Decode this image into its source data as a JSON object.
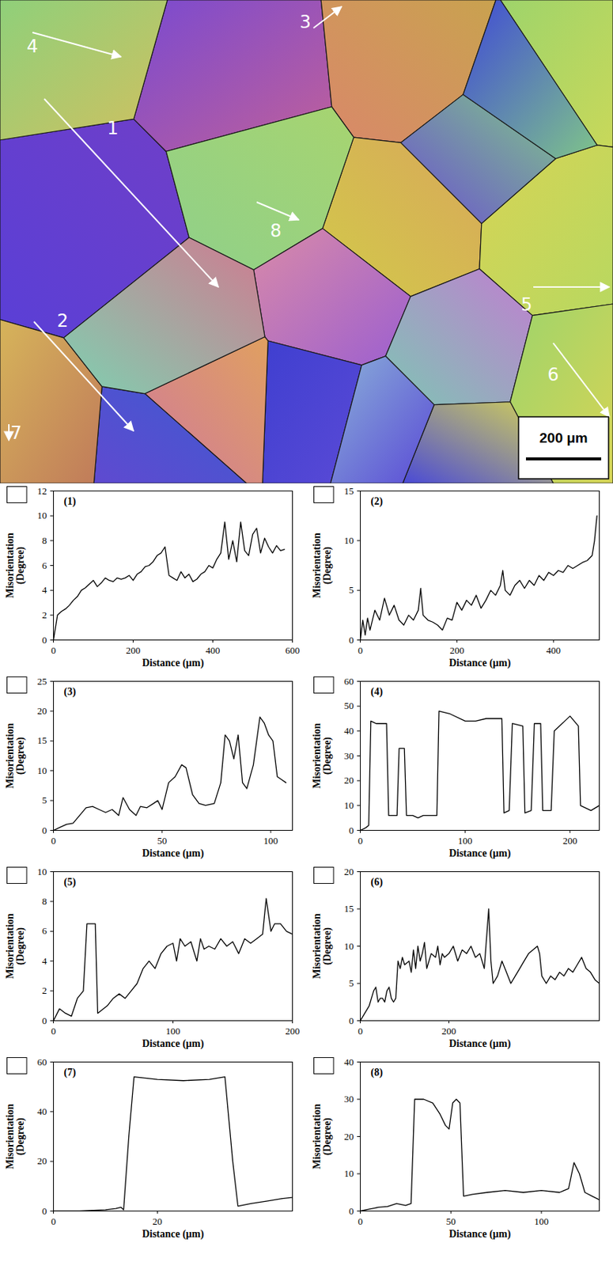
{
  "micrograph": {
    "arrow_labels": [
      "1",
      "2",
      "3",
      "4",
      "5",
      "6",
      "7",
      "8"
    ],
    "scale_bar": "200 μm"
  },
  "chart_data": [
    {
      "type": "line",
      "title": "(1)",
      "xlabel": "Distance (μm)",
      "ylabel": "Misorientation (Degree)",
      "color": "#000000",
      "xlim": [
        0,
        600
      ],
      "xticks": [
        0,
        200,
        400,
        600
      ],
      "ylim": [
        0,
        12
      ],
      "yticks": [
        0,
        2,
        4,
        6,
        8,
        10,
        12
      ],
      "x": [
        0,
        5,
        10,
        20,
        30,
        40,
        50,
        60,
        70,
        80,
        90,
        100,
        110,
        120,
        130,
        140,
        150,
        160,
        170,
        180,
        190,
        200,
        210,
        220,
        230,
        240,
        250,
        260,
        270,
        280,
        290,
        300,
        310,
        320,
        330,
        340,
        350,
        360,
        370,
        380,
        390,
        400,
        410,
        420,
        430,
        440,
        450,
        460,
        470,
        480,
        490,
        500,
        510,
        520,
        530,
        540,
        550,
        560,
        570,
        580
      ],
      "values": [
        0,
        1,
        2,
        2.3,
        2.5,
        2.8,
        3.2,
        3.5,
        4,
        4.2,
        4.5,
        4.8,
        4.3,
        4.6,
        5,
        4.8,
        4.7,
        5,
        4.9,
        5,
        5.2,
        4.8,
        5.3,
        5.5,
        5.9,
        6,
        6.3,
        6.8,
        7,
        7.5,
        5.2,
        5,
        4.8,
        5.5,
        5,
        5.3,
        4.7,
        4.9,
        5.3,
        5.5,
        6,
        5.8,
        6.5,
        7,
        9.5,
        6.5,
        8,
        6.3,
        9.5,
        7.2,
        6.8,
        8.5,
        9,
        7,
        8.2,
        7.5,
        7,
        7.6,
        7.2,
        7.3
      ]
    },
    {
      "type": "line",
      "title": "(2)",
      "xlabel": "Distance (μm)",
      "ylabel": "Misorientation (Degree)",
      "color": "#000000",
      "xlim": [
        0,
        495
      ],
      "xticks": [
        0,
        200,
        400
      ],
      "ylim": [
        0,
        15
      ],
      "yticks": [
        0,
        5,
        10,
        15
      ],
      "x": [
        0,
        5,
        10,
        15,
        20,
        30,
        40,
        50,
        60,
        70,
        80,
        90,
        100,
        110,
        120,
        125,
        130,
        140,
        150,
        160,
        170,
        180,
        190,
        200,
        210,
        220,
        230,
        240,
        250,
        260,
        270,
        280,
        290,
        295,
        300,
        310,
        320,
        330,
        340,
        350,
        360,
        370,
        380,
        390,
        400,
        410,
        420,
        430,
        440,
        450,
        460,
        470,
        480,
        485,
        490
      ],
      "values": [
        0,
        2,
        0.5,
        2.2,
        1,
        3,
        2,
        4.2,
        2.5,
        3.5,
        2,
        1.5,
        2.5,
        2,
        3,
        5.2,
        2.5,
        2,
        1.8,
        1.5,
        1,
        2.2,
        2,
        3.8,
        3,
        4,
        3.5,
        4.5,
        3.2,
        4,
        5,
        4.5,
        5.5,
        7,
        5,
        4.5,
        5.5,
        6,
        5.2,
        6,
        5.5,
        6.5,
        6,
        6.8,
        6.5,
        7,
        6.8,
        7.5,
        7.2,
        7.5,
        7.8,
        8,
        8.5,
        10,
        12.5
      ]
    },
    {
      "type": "line",
      "title": "(3)",
      "xlabel": "Distance (μm)",
      "ylabel": "Misorientation (Degree)",
      "color": "#000000",
      "xlim": [
        0,
        110
      ],
      "xticks": [
        0,
        50,
        100
      ],
      "ylim": [
        0,
        25
      ],
      "yticks": [
        0,
        5,
        10,
        15,
        20,
        25
      ],
      "x": [
        0,
        3,
        6,
        9,
        12,
        15,
        18,
        21,
        24,
        27,
        30,
        32,
        35,
        38,
        40,
        43,
        46,
        48,
        50,
        53,
        56,
        59,
        61,
        64,
        67,
        70,
        74,
        77,
        79,
        81,
        83,
        85,
        87,
        89,
        92,
        95,
        97,
        99,
        101,
        103,
        105,
        107
      ],
      "values": [
        0,
        0.5,
        1,
        1.2,
        2.5,
        3.8,
        4,
        3.5,
        3,
        3.5,
        2.5,
        5.5,
        3.5,
        2.5,
        4,
        3.8,
        4.5,
        5,
        3.5,
        8,
        9,
        11,
        10.5,
        6,
        4.5,
        4.2,
        4.5,
        8,
        16,
        15,
        12,
        16,
        8,
        7,
        11,
        19,
        18,
        16,
        15,
        9,
        8.5,
        8
      ]
    },
    {
      "type": "line",
      "title": "(4)",
      "xlabel": "Distance (μm)",
      "ylabel": "Misorientation (Degree)",
      "color": "#000000",
      "xlim": [
        0,
        228
      ],
      "xticks": [
        0,
        100,
        200
      ],
      "ylim": [
        0,
        60
      ],
      "yticks": [
        0,
        10,
        20,
        30,
        40,
        50,
        60
      ],
      "x": [
        0,
        5,
        8,
        10,
        15,
        25,
        27,
        35,
        37,
        42,
        44,
        50,
        55,
        60,
        70,
        73,
        75,
        85,
        100,
        110,
        120,
        135,
        137,
        142,
        145,
        155,
        157,
        163,
        166,
        172,
        174,
        182,
        185,
        195,
        200,
        208,
        210,
        220,
        228
      ],
      "values": [
        0,
        1,
        2,
        44,
        43,
        43,
        6,
        6,
        33,
        33,
        6,
        6,
        5,
        6,
        6,
        6,
        48,
        47,
        44,
        44,
        45,
        45,
        7,
        8,
        43,
        42,
        7,
        8,
        43,
        43,
        8,
        8,
        40,
        44,
        46,
        42,
        10,
        8,
        10
      ]
    },
    {
      "type": "line",
      "title": "(5)",
      "xlabel": "Distance (μm)",
      "ylabel": "Misorientation (Degree)",
      "color": "#000000",
      "xlim": [
        0,
        200
      ],
      "xticks": [
        0,
        100,
        200
      ],
      "ylim": [
        0,
        10
      ],
      "yticks": [
        0,
        2,
        4,
        6,
        8,
        10
      ],
      "x": [
        0,
        5,
        10,
        15,
        20,
        25,
        28,
        35,
        37,
        45,
        50,
        55,
        60,
        65,
        70,
        75,
        80,
        85,
        90,
        95,
        100,
        103,
        106,
        110,
        115,
        120,
        123,
        126,
        130,
        135,
        140,
        145,
        150,
        155,
        160,
        165,
        170,
        175,
        178,
        182,
        185,
        190,
        195,
        200
      ],
      "values": [
        0,
        0.8,
        0.5,
        0.3,
        1.5,
        2,
        6.5,
        6.5,
        0.5,
        1,
        1.5,
        1.8,
        1.5,
        2,
        2.5,
        3.5,
        4,
        3.5,
        4.5,
        5,
        5.2,
        4,
        5.5,
        5,
        5.3,
        4,
        5.5,
        4.8,
        5,
        4.8,
        5.5,
        5,
        5.3,
        4.5,
        5.5,
        5.2,
        5.5,
        5.8,
        8.2,
        6,
        6.5,
        6.5,
        6,
        5.8
      ]
    },
    {
      "type": "line",
      "title": "(6)",
      "xlabel": "Distance (μm)",
      "ylabel": "Misorientation (Degree)",
      "color": "#000000",
      "xlim": [
        0,
        540
      ],
      "xticks": [
        0,
        200
      ],
      "ylim": [
        0,
        20
      ],
      "yticks": [
        0,
        5,
        10,
        15,
        20
      ],
      "x": [
        0,
        10,
        20,
        30,
        35,
        40,
        45,
        50,
        55,
        60,
        65,
        70,
        75,
        80,
        85,
        90,
        95,
        100,
        110,
        115,
        120,
        125,
        130,
        135,
        140,
        145,
        150,
        160,
        170,
        175,
        180,
        185,
        190,
        200,
        210,
        220,
        230,
        240,
        250,
        260,
        270,
        280,
        285,
        290,
        295,
        300,
        310,
        320,
        330,
        340,
        350,
        360,
        370,
        380,
        390,
        400,
        405,
        410,
        420,
        430,
        440,
        450,
        460,
        470,
        480,
        490,
        500,
        510,
        520,
        530,
        540
      ],
      "values": [
        0,
        1,
        2,
        4,
        4.5,
        2.5,
        3,
        3,
        2.5,
        4,
        4.5,
        3,
        2.5,
        3,
        8,
        7,
        8.5,
        7.5,
        8,
        6.5,
        9.5,
        7,
        10,
        8,
        9,
        10.5,
        7,
        9,
        8.5,
        10,
        7.5,
        9,
        8.5,
        9,
        10,
        8,
        9.5,
        9,
        10,
        8.5,
        9,
        7,
        11,
        15,
        8,
        5,
        6,
        8,
        6.5,
        5,
        6,
        7,
        8,
        9,
        9.5,
        10,
        9,
        6,
        5,
        6,
        5.5,
        6.5,
        6,
        7,
        6.5,
        7.5,
        8.5,
        7,
        6.5,
        5.5,
        5
      ]
    },
    {
      "type": "line",
      "title": "(7)",
      "xlabel": "Distance (μm)",
      "ylabel": "Misorientation (Degree)",
      "color": "#000000",
      "xlim": [
        0,
        46
      ],
      "xticks": [
        0,
        20
      ],
      "ylim": [
        0,
        60
      ],
      "yticks": [
        0,
        20,
        40,
        60
      ],
      "x": [
        0,
        5,
        10,
        12,
        13,
        13.5,
        14.5,
        15.5,
        20,
        25,
        30,
        33,
        34.5,
        35.5,
        38,
        41,
        44,
        46
      ],
      "values": [
        0,
        0,
        0.5,
        1,
        1.5,
        0.5,
        30,
        54,
        53,
        52.5,
        53,
        54,
        20,
        2,
        3,
        4,
        5,
        5.5
      ]
    },
    {
      "type": "line",
      "title": "(8)",
      "xlabel": "Distance (μm)",
      "ylabel": "Misorientation (Degree)",
      "color": "#000000",
      "xlim": [
        0,
        132
      ],
      "xticks": [
        0,
        50,
        100
      ],
      "ylim": [
        0,
        40
      ],
      "yticks": [
        0,
        10,
        20,
        30,
        40
      ],
      "x": [
        0,
        5,
        10,
        15,
        20,
        25,
        28,
        30,
        35,
        40,
        44,
        47,
        49,
        51,
        53,
        55,
        57,
        62,
        70,
        80,
        90,
        100,
        110,
        115,
        118,
        121,
        124,
        128,
        132
      ],
      "values": [
        0,
        0.5,
        1,
        1.2,
        2,
        1.5,
        2,
        30,
        30,
        29,
        26,
        23,
        22,
        29,
        30,
        29,
        4,
        4.5,
        5,
        5.5,
        5,
        5.5,
        5,
        6,
        13,
        10,
        5,
        4,
        3
      ]
    }
  ]
}
